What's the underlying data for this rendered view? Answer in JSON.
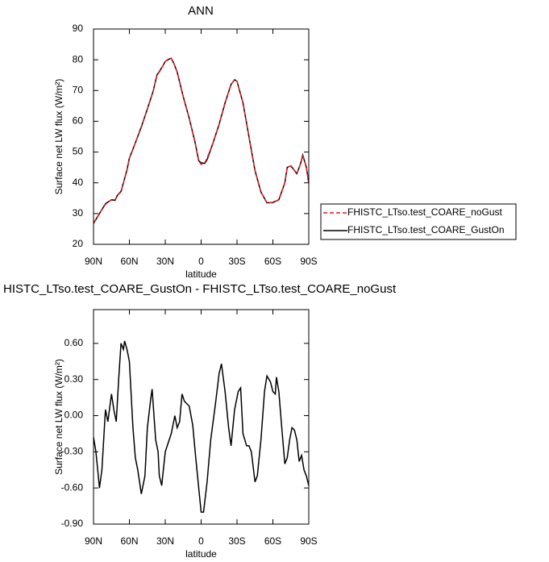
{
  "chart_data": [
    {
      "type": "line",
      "title": "ANN",
      "xlabel": "latitude",
      "ylabel": "Surface net LW flux (W/m²)",
      "x": [
        90,
        85,
        80,
        75,
        72,
        70,
        67,
        65,
        62,
        60,
        55,
        50,
        45,
        40,
        37,
        35,
        32,
        30,
        27,
        25,
        23,
        20,
        15,
        10,
        5,
        2,
        0,
        -3,
        -5,
        -10,
        -15,
        -20,
        -25,
        -28,
        -30,
        -35,
        -40,
        -45,
        -50,
        -55,
        -60,
        -65,
        -70,
        -72,
        -75,
        -80,
        -83,
        -85,
        -88,
        -90
      ],
      "series": [
        {
          "name": "FHISTC_LTso.test_COARE_noGust",
          "color": "#e41a1c",
          "dashed": true,
          "values": [
            27,
            30,
            33,
            34.5,
            34.5,
            36,
            37,
            40,
            44,
            48,
            53,
            58,
            64,
            70,
            75,
            76,
            78,
            79.5,
            80,
            80.5,
            79,
            76,
            68,
            61,
            53,
            47,
            46,
            46.5,
            48,
            53,
            59,
            66,
            72,
            73.5,
            73,
            66,
            55,
            44,
            37,
            33.5,
            33.5,
            34.5,
            40,
            45,
            45.5,
            43,
            46,
            49,
            45,
            40
          ]
        },
        {
          "name": "FHISTC_LTso.test_COARE_GustOn",
          "color": "#000000",
          "dashed": false,
          "values": [
            26.8,
            30,
            33.2,
            34.5,
            34.3,
            36,
            37.2,
            40,
            44.2,
            48,
            53,
            58.2,
            64,
            70,
            75,
            76.2,
            78,
            79.5,
            80.2,
            80.5,
            79,
            76,
            68,
            61,
            53,
            47.2,
            46.5,
            46.3,
            47.5,
            53,
            59,
            66,
            72,
            73.5,
            73,
            66,
            55,
            44,
            37,
            33.5,
            33.6,
            34.5,
            40,
            45,
            45.5,
            43,
            46,
            49,
            45,
            40
          ]
        }
      ],
      "xlim": [
        90,
        -90
      ],
      "xticks": [
        {
          "value": 90,
          "label": "90N"
        },
        {
          "value": 60,
          "label": "60N"
        },
        {
          "value": 30,
          "label": "30N"
        },
        0,
        {
          "value": -30,
          "label": "30S"
        },
        {
          "value": -60,
          "label": "60S"
        },
        {
          "value": -90,
          "label": "90S"
        }
      ],
      "ylim": [
        20,
        90
      ],
      "yticks": [
        20,
        30,
        40,
        50,
        60,
        70,
        80,
        90
      ],
      "legend": "right"
    },
    {
      "type": "line",
      "title": "HISTC_LTso.test_COARE_GustOn - FHISTC_LTso.test_COARE_noGust",
      "xlabel": "latitude",
      "ylabel": "Surface net LW flux (W/m²)",
      "x": [
        90,
        88,
        85,
        83,
        80,
        78,
        75,
        73,
        71,
        69,
        67,
        65,
        64,
        62,
        60,
        57,
        55,
        53,
        50,
        47,
        45,
        42,
        41,
        38,
        36,
        35,
        33,
        30,
        25,
        22,
        20,
        18,
        16,
        14,
        10,
        7,
        5,
        2,
        0,
        -2,
        -5,
        -8,
        -12,
        -15,
        -17,
        -20,
        -23,
        -25,
        -28,
        -31,
        -33,
        -35,
        -38,
        -40,
        -42,
        -45,
        -47,
        -50,
        -53,
        -55,
        -58,
        -60,
        -62,
        -63,
        -65,
        -67,
        -70,
        -72,
        -74,
        -76,
        -78,
        -80,
        -82,
        -84,
        -86,
        -88,
        -90
      ],
      "series": [
        {
          "color": "#000000",
          "dashed": false,
          "values": [
            -0.18,
            -0.3,
            -0.6,
            -0.45,
            0.05,
            -0.05,
            0.18,
            0.05,
            -0.05,
            0.3,
            0.6,
            0.55,
            0.62,
            0.55,
            0.45,
            -0.1,
            -0.35,
            -0.45,
            -0.65,
            -0.5,
            -0.1,
            0.15,
            0.22,
            -0.2,
            -0.3,
            -0.5,
            -0.58,
            -0.3,
            -0.15,
            0,
            -0.1,
            -0.05,
            0.18,
            0.12,
            0.08,
            -0.08,
            -0.3,
            -0.6,
            -0.8,
            -0.8,
            -0.55,
            -0.2,
            0.1,
            0.35,
            0.43,
            0.2,
            -0.1,
            -0.25,
            0.05,
            0.2,
            0.23,
            -0.15,
            -0.25,
            -0.25,
            -0.3,
            -0.55,
            -0.5,
            -0.2,
            0.2,
            0.33,
            0.28,
            0.2,
            0.18,
            0.32,
            0.2,
            -0.05,
            -0.4,
            -0.35,
            -0.2,
            -0.1,
            -0.12,
            -0.2,
            -0.38,
            -0.33,
            -0.45,
            -0.5,
            -0.58
          ]
        }
      ],
      "xlim": [
        90,
        -90
      ],
      "xticks": [
        {
          "value": 90,
          "label": "90N"
        },
        {
          "value": 60,
          "label": "60N"
        },
        {
          "value": 30,
          "label": "30N"
        },
        0,
        {
          "value": -30,
          "label": "30S"
        },
        {
          "value": -60,
          "label": "60S"
        },
        {
          "value": -90,
          "label": "90S"
        }
      ],
      "ylim": [
        -0.9,
        0.88
      ],
      "yticks": [
        {
          "value": -0.9,
          "label": "-0.90"
        },
        {
          "value": -0.6,
          "label": "-0.60"
        },
        {
          "value": -0.3,
          "label": "-0.30"
        },
        {
          "value": 0,
          "label": "0.00"
        },
        {
          "value": 0.3,
          "label": "0.30"
        },
        {
          "value": 0.6,
          "label": "0.60"
        }
      ]
    }
  ]
}
